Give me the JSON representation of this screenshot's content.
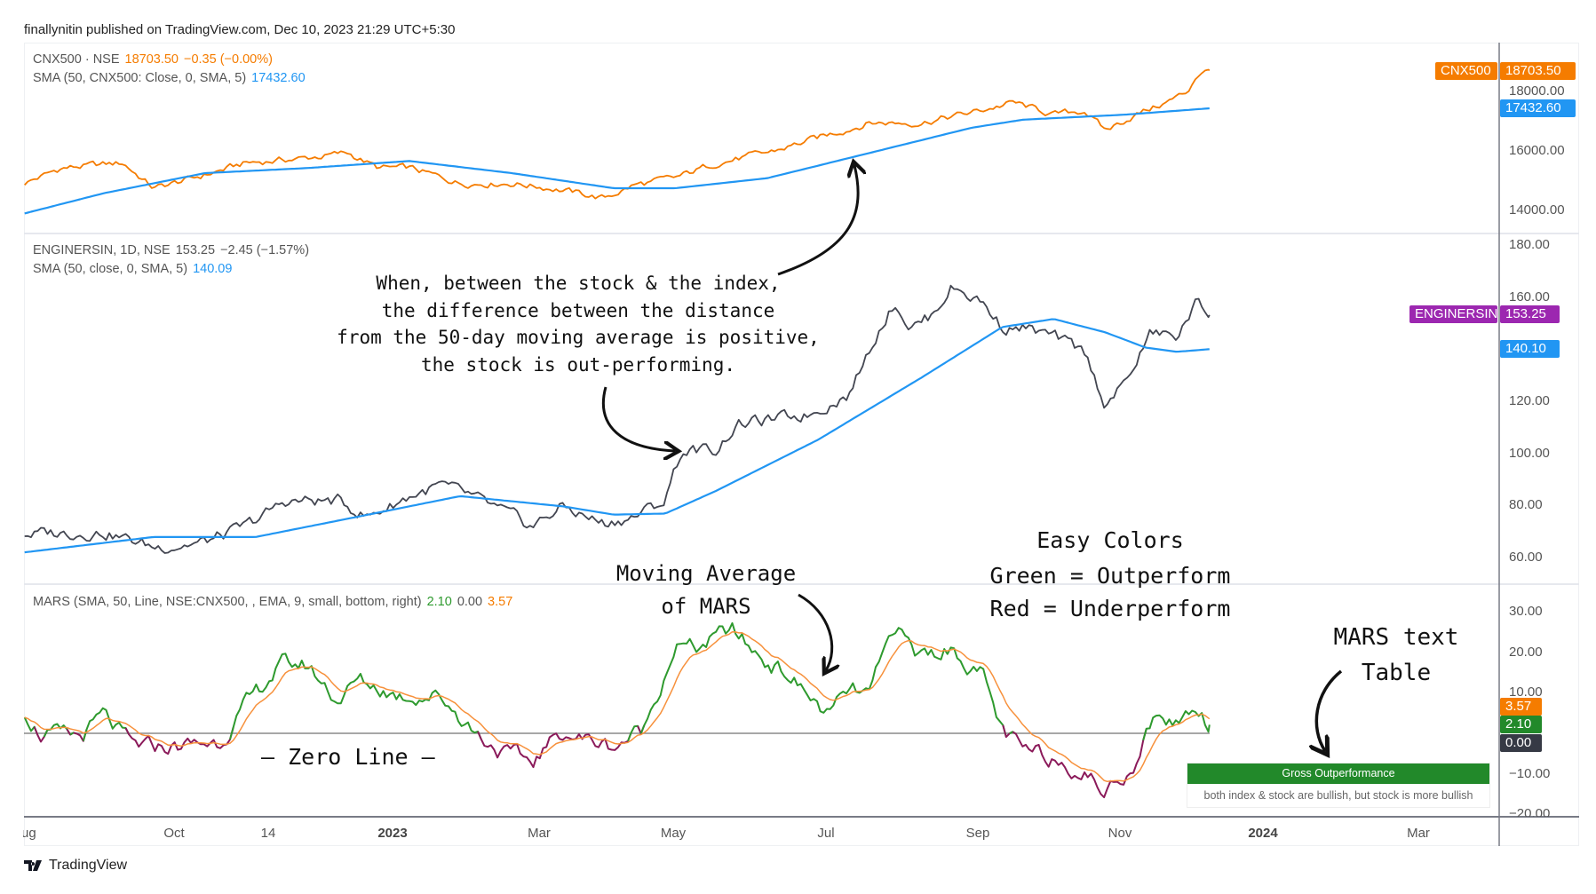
{
  "header": {
    "text": "finallynitin published on TradingView.com, Dec 10, 2023 21:29 UTC+5:30"
  },
  "footer": {
    "brand": "TradingView"
  },
  "colors": {
    "index": "#f57c00",
    "sma": "#2196f3",
    "stock": "#434651",
    "stock_tag": "#9c27b0",
    "mars_pos": "#2e9a2e",
    "mars_neg": "#8b1a5a",
    "mars_ema": "#f7913c",
    "zero": "#888888"
  },
  "panes": {
    "index": {
      "legend_symbol": "CNX500 · NSE",
      "legend_price": "18703.50",
      "legend_change": "−0.35 (−0.00%)",
      "sma_label": "SMA (50, CNX500: Close, 0, SMA, 5)",
      "sma_value": "17432.60",
      "axis_ticks": [
        "18000.00",
        "16000.00",
        "14000.00"
      ],
      "tag_name": "CNX500",
      "tag_price": "18703.50",
      "tag_sma": "17432.60"
    },
    "stock": {
      "legend_symbol": "ENGINERSIN, 1D, NSE",
      "legend_price": "153.25",
      "legend_change": "−2.45 (−1.57%)",
      "sma_label": "SMA (50, close, 0, SMA, 5)",
      "sma_value": "140.09",
      "axis_ticks": [
        "180.00",
        "160.00",
        "120.00",
        "100.00",
        "80.00",
        "60.00"
      ],
      "tag_name": "ENGINERSIN",
      "tag_price": "153.25",
      "tag_sma": "140.10"
    },
    "mars": {
      "legend_label": "MARS (SMA, 50, Line, NSE:CNX500, , EMA, 9, small, bottom, right)",
      "legend_v1": "2.10",
      "legend_v2": "0.00",
      "legend_v3": "3.57",
      "axis_ticks": [
        "30.00",
        "20.00",
        "10.00",
        "−10.00",
        "−20.00"
      ],
      "tag_ema": "3.57",
      "tag_mars": "2.10",
      "tag_zero": "0.00",
      "table_title": "Gross Outperformance",
      "table_text": "both index & stock are bullish, but stock is more bullish"
    }
  },
  "time_axis": [
    {
      "label": "Aug",
      "bold": false
    },
    {
      "label": "Oct",
      "bold": false
    },
    {
      "label": "14",
      "bold": false
    },
    {
      "label": "2023",
      "bold": true
    },
    {
      "label": "Mar",
      "bold": false
    },
    {
      "label": "May",
      "bold": false
    },
    {
      "label": "Jul",
      "bold": false
    },
    {
      "label": "Sep",
      "bold": false
    },
    {
      "label": "Nov",
      "bold": false
    },
    {
      "label": "2024",
      "bold": true
    },
    {
      "label": "Mar",
      "bold": false
    }
  ],
  "annotations": {
    "main": [
      "When, between the stock & the index,",
      "the difference between the distance",
      "from the 50-day moving average is positive,",
      "the stock is out-performing."
    ],
    "ma_of_mars": [
      "Moving Average",
      "of MARS"
    ],
    "easy_colors": [
      "Easy Colors",
      "Green = Outperform",
      "Red = Underperform"
    ],
    "zero_line": "— Zero Line —",
    "mars_table": [
      "MARS text",
      "Table"
    ]
  },
  "chart_data": {
    "type": "line",
    "x_unit": "months since Aug 2022",
    "time_ticks_at": [
      0,
      2,
      3.45,
      5,
      7,
      9,
      11,
      13,
      15,
      17,
      19
    ],
    "x_range": [
      -0.1,
      16.26
    ],
    "series": [
      {
        "name": "CNX500",
        "pane": "index",
        "noise": 120,
        "points": [
          [
            -0.09,
            14915
          ],
          [
            0.42,
            15424
          ],
          [
            1.27,
            15593
          ],
          [
            1.69,
            14746
          ],
          [
            2.25,
            15085
          ],
          [
            2.96,
            15593
          ],
          [
            3.81,
            15763
          ],
          [
            4.37,
            15932
          ],
          [
            4.79,
            15424
          ],
          [
            5.22,
            15424
          ],
          [
            5.92,
            14915
          ],
          [
            6.63,
            14915
          ],
          [
            7.2,
            14746
          ],
          [
            7.9,
            14407
          ],
          [
            8.32,
            14848
          ],
          [
            8.89,
            15085
          ],
          [
            9.45,
            15593
          ],
          [
            10.16,
            15932
          ],
          [
            10.86,
            16441
          ],
          [
            11.57,
            16949
          ],
          [
            12.27,
            16949
          ],
          [
            12.98,
            17288
          ],
          [
            13.55,
            17627
          ],
          [
            14.11,
            17220
          ],
          [
            14.54,
            17356
          ],
          [
            14.82,
            16678
          ],
          [
            15.24,
            17220
          ],
          [
            15.66,
            17627
          ],
          [
            15.95,
            17966
          ],
          [
            16.09,
            18576
          ],
          [
            16.26,
            18703.5
          ]
        ]
      },
      {
        "name": "SMA 50 (CNX500)",
        "pane": "index",
        "noise": 0,
        "points": [
          [
            -0.09,
            13898
          ],
          [
            1.0,
            14576
          ],
          [
            2.4,
            15254
          ],
          [
            3.81,
            15424
          ],
          [
            5.22,
            15661
          ],
          [
            6.63,
            15254
          ],
          [
            8.04,
            14746
          ],
          [
            8.89,
            14746
          ],
          [
            10.16,
            15085
          ],
          [
            11.57,
            15932
          ],
          [
            12.98,
            16780
          ],
          [
            13.69,
            17051
          ],
          [
            15.1,
            17220
          ],
          [
            16.26,
            17432.6
          ]
        ]
      },
      {
        "name": "ENGINERSIN",
        "pane": "stock",
        "noise": 2.5,
        "points": [
          [
            -0.09,
            69.1
          ],
          [
            1.0,
            69.8
          ],
          [
            1.69,
            64
          ],
          [
            2.4,
            65.9
          ],
          [
            2.96,
            71.8
          ],
          [
            3.52,
            81.7
          ],
          [
            4.23,
            81.7
          ],
          [
            4.65,
            75.7
          ],
          [
            5.22,
            83.6
          ],
          [
            5.64,
            87.6
          ],
          [
            6.06,
            83.6
          ],
          [
            6.63,
            75.7
          ],
          [
            6.91,
            71.8
          ],
          [
            7.33,
            79.7
          ],
          [
            7.9,
            73
          ],
          [
            8.32,
            75.7
          ],
          [
            8.75,
            81.7
          ],
          [
            8.89,
            95.4
          ],
          [
            9.03,
            101.3
          ],
          [
            9.45,
            101.3
          ],
          [
            9.73,
            111.2
          ],
          [
            10.3,
            113.1
          ],
          [
            10.72,
            115.1
          ],
          [
            11.29,
            123
          ],
          [
            11.71,
            148.6
          ],
          [
            11.92,
            158.4
          ],
          [
            12.13,
            148.6
          ],
          [
            12.41,
            152.5
          ],
          [
            12.7,
            164.3
          ],
          [
            13.12,
            158.4
          ],
          [
            13.4,
            148.6
          ],
          [
            13.69,
            148.6
          ],
          [
            14.11,
            144.6
          ],
          [
            14.54,
            138.7
          ],
          [
            14.82,
            119
          ],
          [
            15.1,
            126.9
          ],
          [
            15.31,
            138.7
          ],
          [
            15.45,
            146.6
          ],
          [
            15.81,
            144.6
          ],
          [
            16.09,
            158.4
          ],
          [
            16.26,
            153.25
          ]
        ]
      },
      {
        "name": "SMA 50 (ENGINERSIN)",
        "pane": "stock",
        "noise": 0,
        "points": [
          [
            -0.09,
            62
          ],
          [
            1.69,
            67.9
          ],
          [
            3.1,
            67.9
          ],
          [
            4.51,
            75.7
          ],
          [
            5.92,
            83.6
          ],
          [
            7.33,
            79.7
          ],
          [
            8.04,
            76.5
          ],
          [
            8.75,
            76.9
          ],
          [
            9.45,
            85.6
          ],
          [
            10.86,
            105.3
          ],
          [
            12.27,
            128.9
          ],
          [
            13.4,
            148.6
          ],
          [
            14.11,
            151.7
          ],
          [
            14.82,
            146.6
          ],
          [
            15.38,
            140.7
          ],
          [
            15.81,
            139.1
          ],
          [
            16.26,
            140.1
          ]
        ]
      },
      {
        "name": "MARS",
        "pane": "mars",
        "noise": 2.2,
        "points": [
          [
            -0.09,
            5.5
          ],
          [
            0.14,
            -0.3
          ],
          [
            0.7,
            -0.8
          ],
          [
            0.99,
            4.3
          ],
          [
            1.41,
            -3.3
          ],
          [
            1.97,
            -3.3
          ],
          [
            2.61,
            -2
          ],
          [
            2.96,
            6.8
          ],
          [
            3.45,
            16.9
          ],
          [
            3.81,
            16.9
          ],
          [
            4.23,
            8.1
          ],
          [
            4.51,
            13.1
          ],
          [
            5.08,
            9.3
          ],
          [
            5.64,
            9.3
          ],
          [
            6.2,
            -0.8
          ],
          [
            6.49,
            -4.5
          ],
          [
            6.91,
            -7.1
          ],
          [
            7.33,
            0.5
          ],
          [
            7.61,
            -1.3
          ],
          [
            8.04,
            -3.3
          ],
          [
            8.46,
            1.3
          ],
          [
            8.89,
            21.9
          ],
          [
            9.17,
            20.7
          ],
          [
            9.66,
            25.7
          ],
          [
            10.02,
            19.4
          ],
          [
            10.44,
            14.4
          ],
          [
            11.01,
            4.3
          ],
          [
            11.29,
            10.6
          ],
          [
            11.57,
            9.3
          ],
          [
            11.92,
            27
          ],
          [
            12.2,
            19.4
          ],
          [
            12.7,
            20.7
          ],
          [
            13.12,
            14.4
          ],
          [
            13.4,
            0.5
          ],
          [
            13.69,
            -4.5
          ],
          [
            14.11,
            -5.8
          ],
          [
            14.54,
            -9.6
          ],
          [
            14.82,
            -14.6
          ],
          [
            15.24,
            -7.1
          ],
          [
            15.45,
            3
          ],
          [
            15.81,
            3
          ],
          [
            16.09,
            6.8
          ],
          [
            16.26,
            2.1
          ]
        ]
      },
      {
        "name": "MARS EMA 9",
        "pane": "mars",
        "derived": "ema",
        "period": 9,
        "last_value": 3.57
      }
    ],
    "zero_line": 0,
    "ylim": {
      "index": [
        13500,
        19500
      ],
      "stock": [
        50,
        190
      ],
      "mars": [
        -20,
        35
      ]
    }
  }
}
